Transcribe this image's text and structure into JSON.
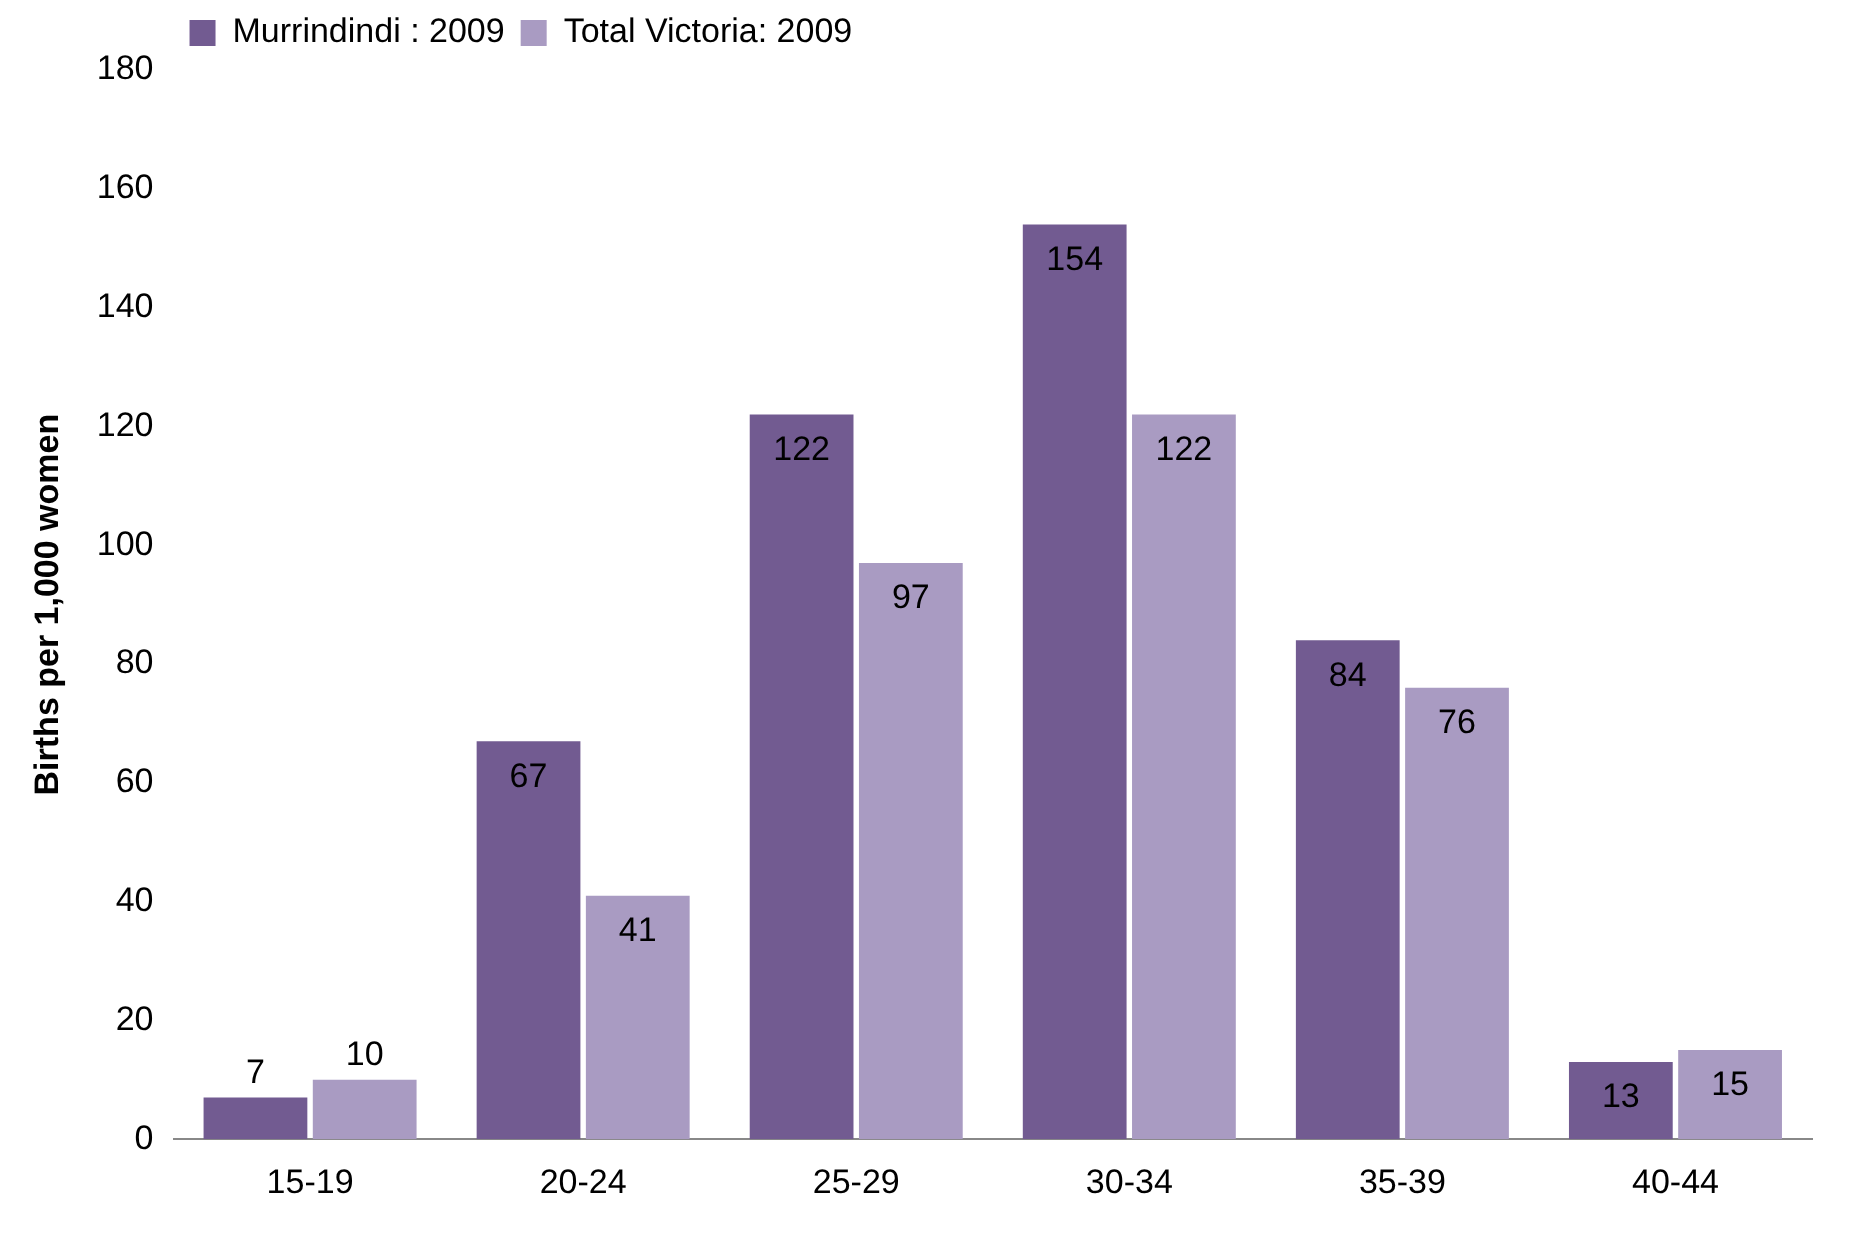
{
  "chart_data": {
    "type": "bar",
    "ylabel": "Births per 1,000 women",
    "categories": [
      "15-19",
      "20-24",
      "25-29",
      "30-34",
      "35-39",
      "40-44"
    ],
    "series": [
      {
        "name": "Murrindindi : 2009",
        "color": "#725b91",
        "values": [
          7,
          67,
          122,
          154,
          84,
          13
        ]
      },
      {
        "name": "Total Victoria: 2009",
        "color": "#a99bc2",
        "values": [
          10,
          41,
          97,
          122,
          76,
          15
        ]
      }
    ],
    "ylim": [
      0,
      180
    ],
    "yticks": [
      0,
      20,
      40,
      60,
      80,
      100,
      120,
      140,
      160,
      180
    ],
    "grid": false,
    "legend": "top left",
    "data_labels": true
  }
}
